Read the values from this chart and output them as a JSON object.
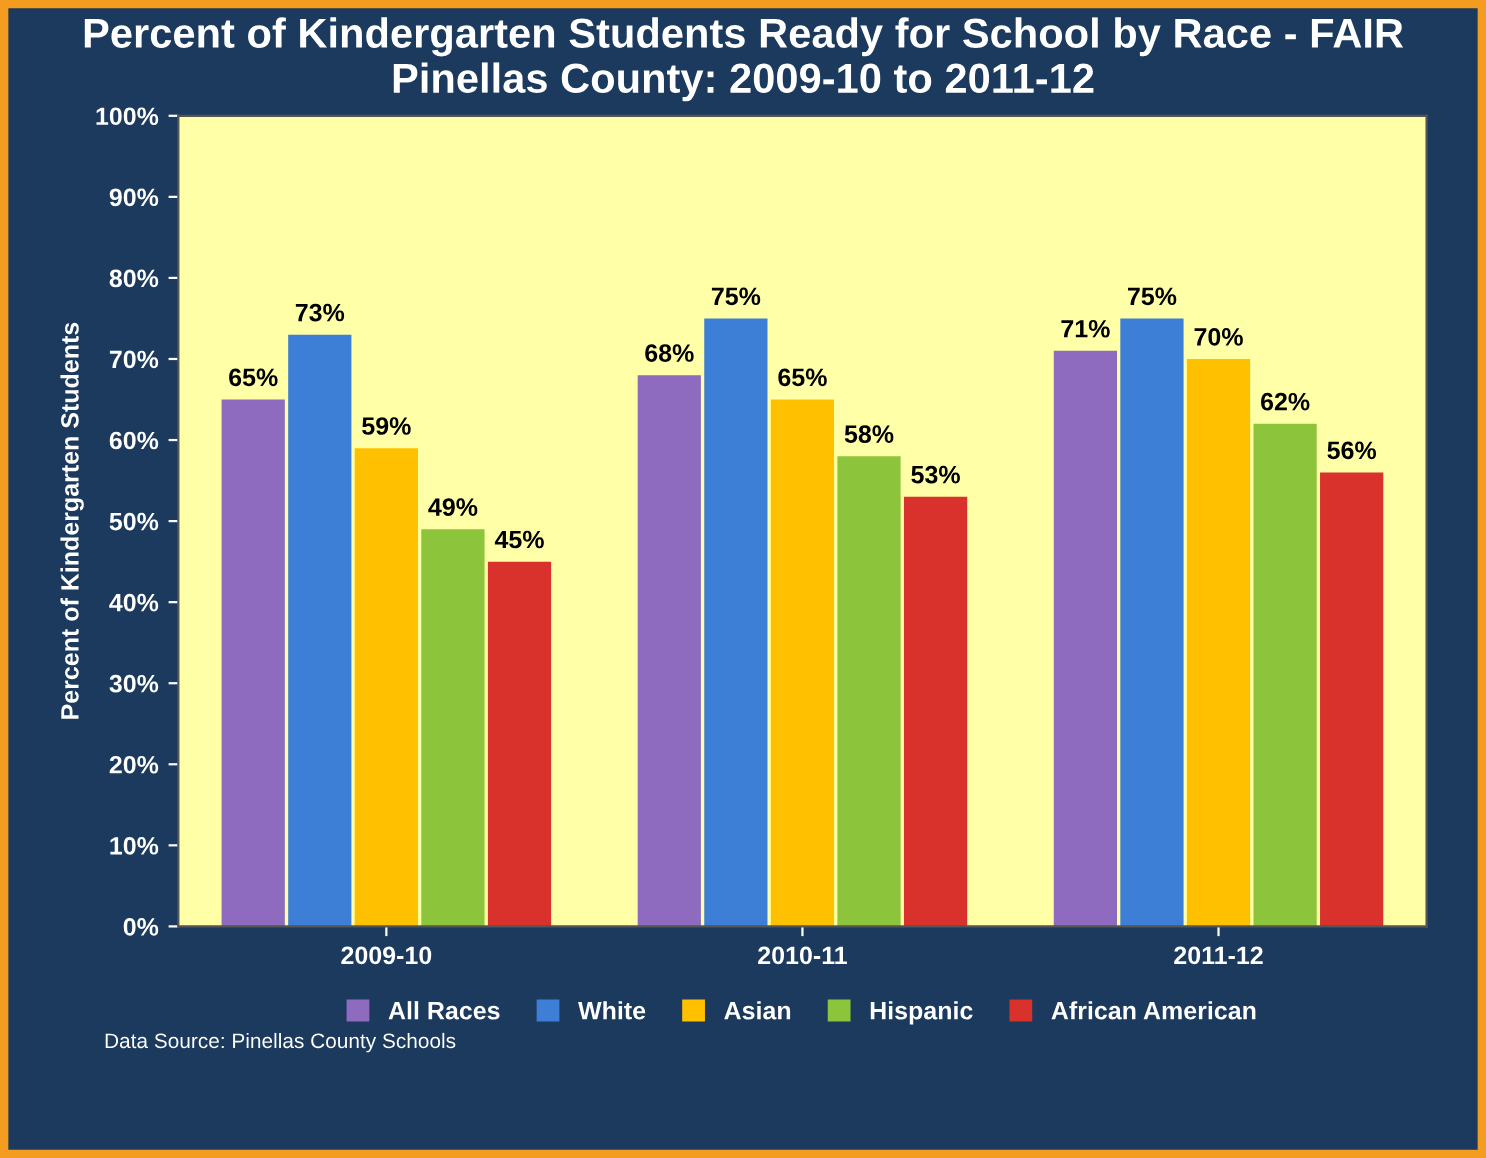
{
  "chart_data": {
    "type": "bar",
    "title": "Percent of Kindergarten Students Ready for School by Race - FAIR\nPinellas County: 2009-10 to 2011-12",
    "ylabel": "Percent of Kindergarten Students",
    "categories": [
      "2009-10",
      "2010-11",
      "2011-12"
    ],
    "series": [
      {
        "name": "All Races",
        "color": "#8e6bbf",
        "values": [
          65,
          68,
          71
        ],
        "value_labels": [
          "65%",
          "68%",
          "71%"
        ]
      },
      {
        "name": "White",
        "color": "#3d7fd6",
        "values": [
          73,
          75,
          75
        ],
        "value_labels": [
          "73%",
          "75%",
          "75%"
        ]
      },
      {
        "name": "Asian",
        "color": "#ffc000",
        "values": [
          59,
          65,
          70
        ],
        "value_labels": [
          "59%",
          "65%",
          "70%"
        ]
      },
      {
        "name": "Hispanic",
        "color": "#8cc43c",
        "values": [
          49,
          58,
          62
        ],
        "value_labels": [
          "49%",
          "58%",
          "62%"
        ]
      },
      {
        "name": "African American",
        "color": "#d9312b",
        "values": [
          45,
          53,
          56
        ],
        "value_labels": [
          "45%",
          "53%",
          "56%"
        ]
      }
    ],
    "ylim": [
      0,
      100
    ],
    "yticks": [
      {
        "value": 0,
        "label": "0%"
      },
      {
        "value": 10,
        "label": "10%"
      },
      {
        "value": 20,
        "label": "20%"
      },
      {
        "value": 30,
        "label": "30%"
      },
      {
        "value": 40,
        "label": "40%"
      },
      {
        "value": 50,
        "label": "50%"
      },
      {
        "value": 60,
        "label": "60%"
      },
      {
        "value": 70,
        "label": "70%"
      },
      {
        "value": 80,
        "label": "80%"
      },
      {
        "value": 90,
        "label": "90%"
      },
      {
        "value": 100,
        "label": "100%"
      }
    ],
    "grid": false,
    "legend": "bottom",
    "annotations": [
      "Data Source: Pinellas County Schools"
    ]
  }
}
